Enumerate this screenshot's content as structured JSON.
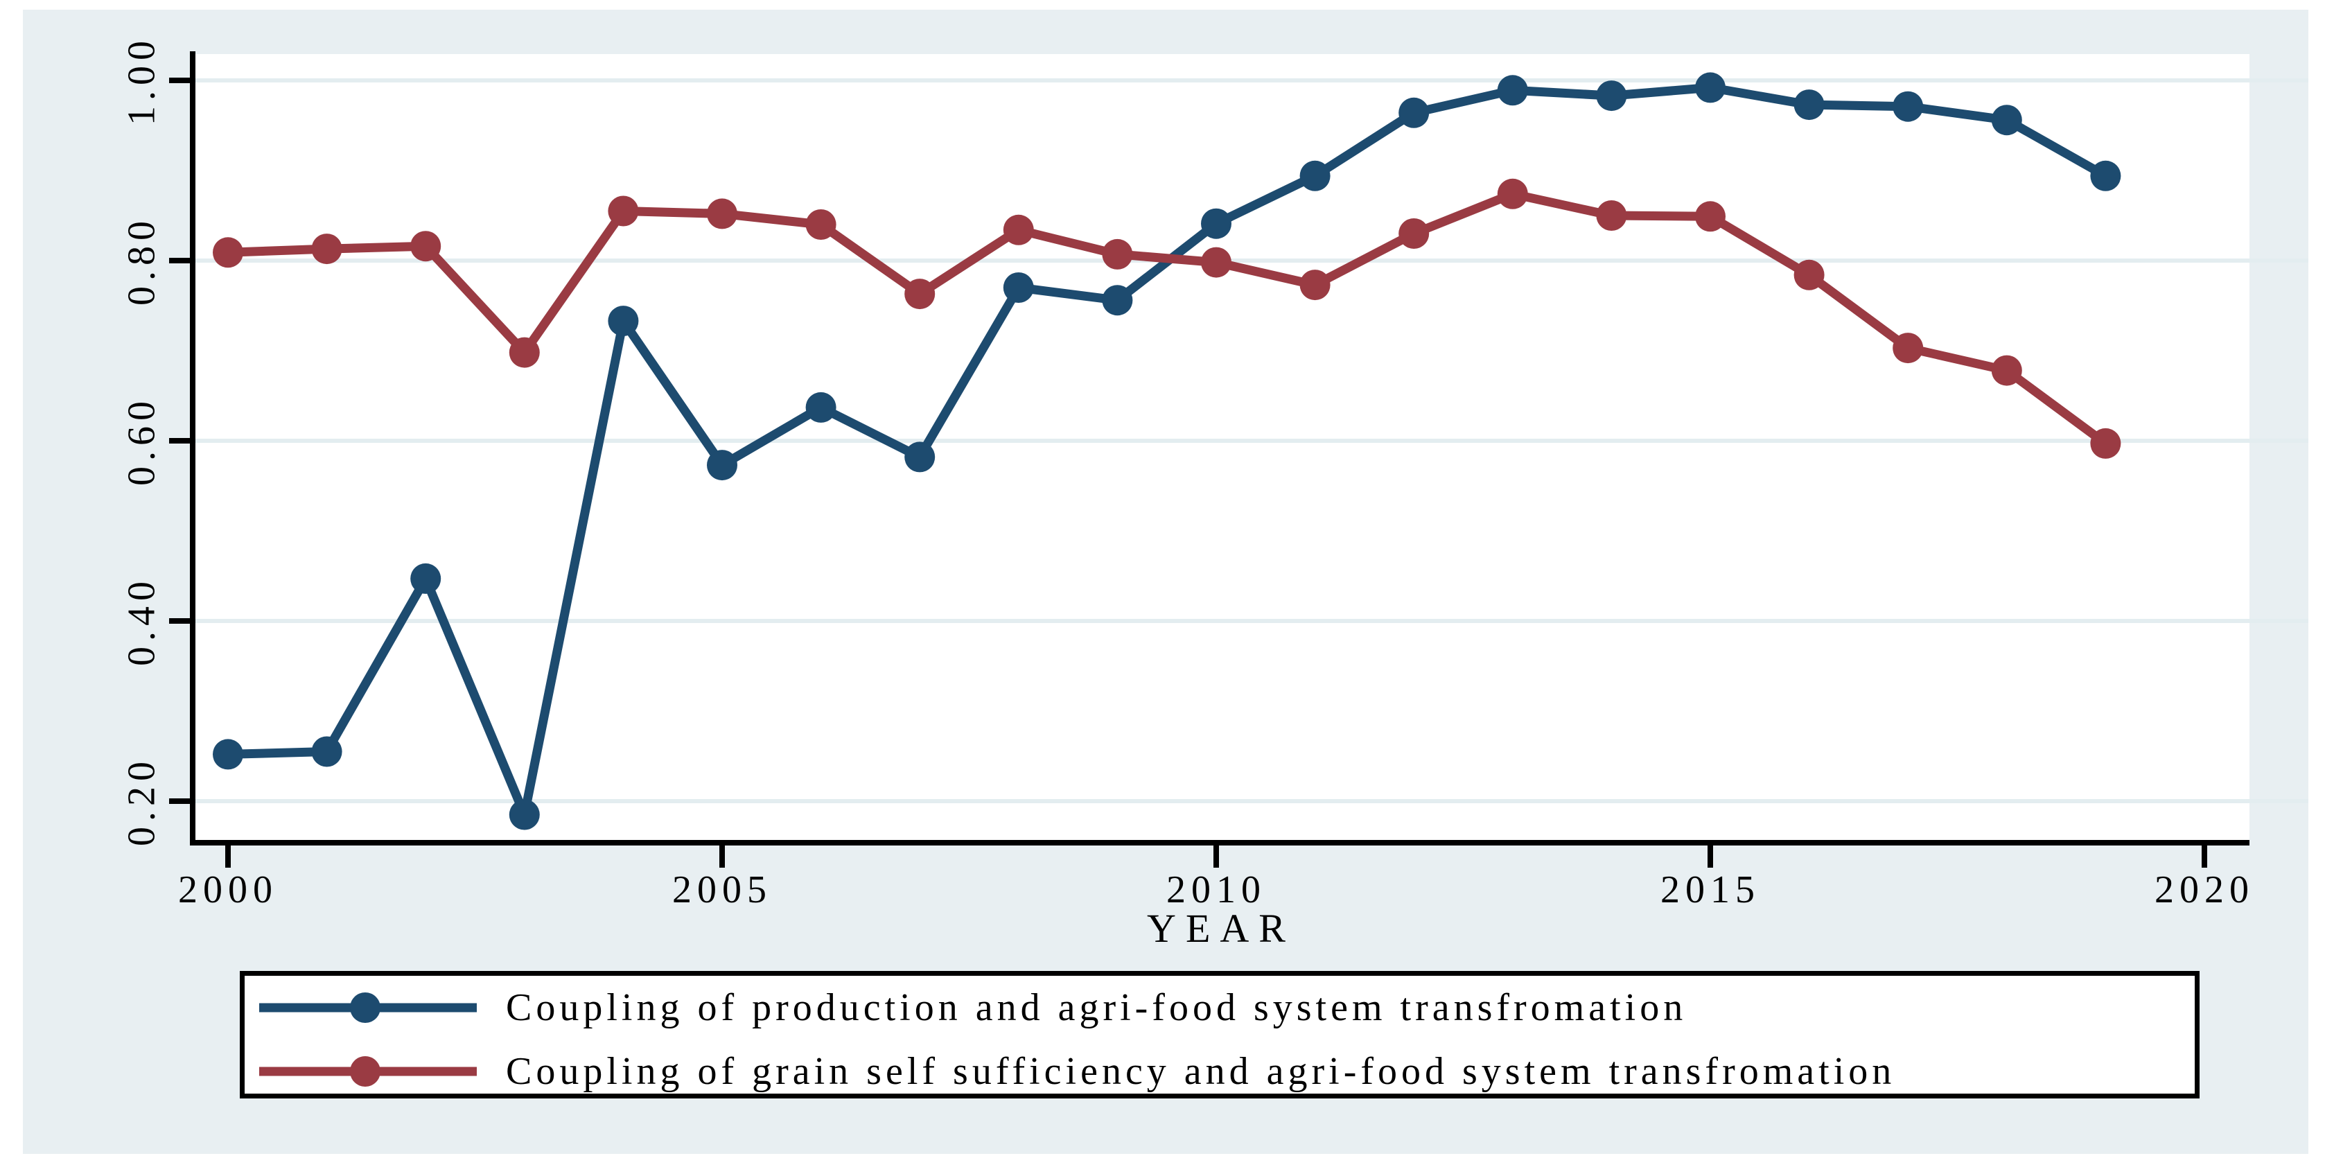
{
  "colors": {
    "page_bg": "#ffffff",
    "canvas_bg": "#e8eff2",
    "plot_bg": "#ffffff",
    "gridline": "#e3edf0",
    "axis": "#000000",
    "legend_border": "#000000",
    "legend_bg": "#ffffff",
    "text": "#000000",
    "series_blue": "#1d4b6f",
    "series_red": "#9a3b43"
  },
  "chart_data": {
    "type": "line",
    "xlabel": "YEAR",
    "ylabel": "",
    "x": [
      2000,
      2001,
      2002,
      2003,
      2004,
      2005,
      2006,
      2007,
      2008,
      2009,
      2010,
      2011,
      2012,
      2013,
      2014,
      2015,
      2016,
      2017,
      2018,
      2019
    ],
    "x_ticks": [
      2000,
      2005,
      2010,
      2015,
      2020
    ],
    "x_tick_labels": [
      "2000",
      "2005",
      "2010",
      "2015",
      "2020"
    ],
    "y_ticks": [
      1.0,
      0.8,
      0.6,
      0.4,
      0.2
    ],
    "y_tick_labels": [
      "1.00",
      "0.80",
      "0.60",
      "0.40",
      "0.20"
    ],
    "xlim": [
      1999.64,
      2020.45
    ],
    "ylim": [
      0.154,
      1.028
    ],
    "grid": true,
    "legend_position": "bottom",
    "series": [
      {
        "name": "Coupling of production and agri-food system transfromation",
        "color": "#1d4b6f",
        "values": [
          0.252,
          0.255,
          0.447,
          0.185,
          0.733,
          0.573,
          0.637,
          0.582,
          0.77,
          0.756,
          0.841,
          0.894,
          0.964,
          0.989,
          0.983,
          0.992,
          0.973,
          0.971,
          0.956,
          0.894
        ]
      },
      {
        "name": "Coupling of grain self sufficiency and agri-food system transfromation",
        "color": "#9a3b43",
        "values": [
          0.809,
          0.813,
          0.816,
          0.698,
          0.855,
          0.852,
          0.84,
          0.763,
          0.834,
          0.807,
          0.798,
          0.773,
          0.83,
          0.874,
          0.85,
          0.849,
          0.784,
          0.703,
          0.678,
          0.597
        ]
      }
    ]
  }
}
